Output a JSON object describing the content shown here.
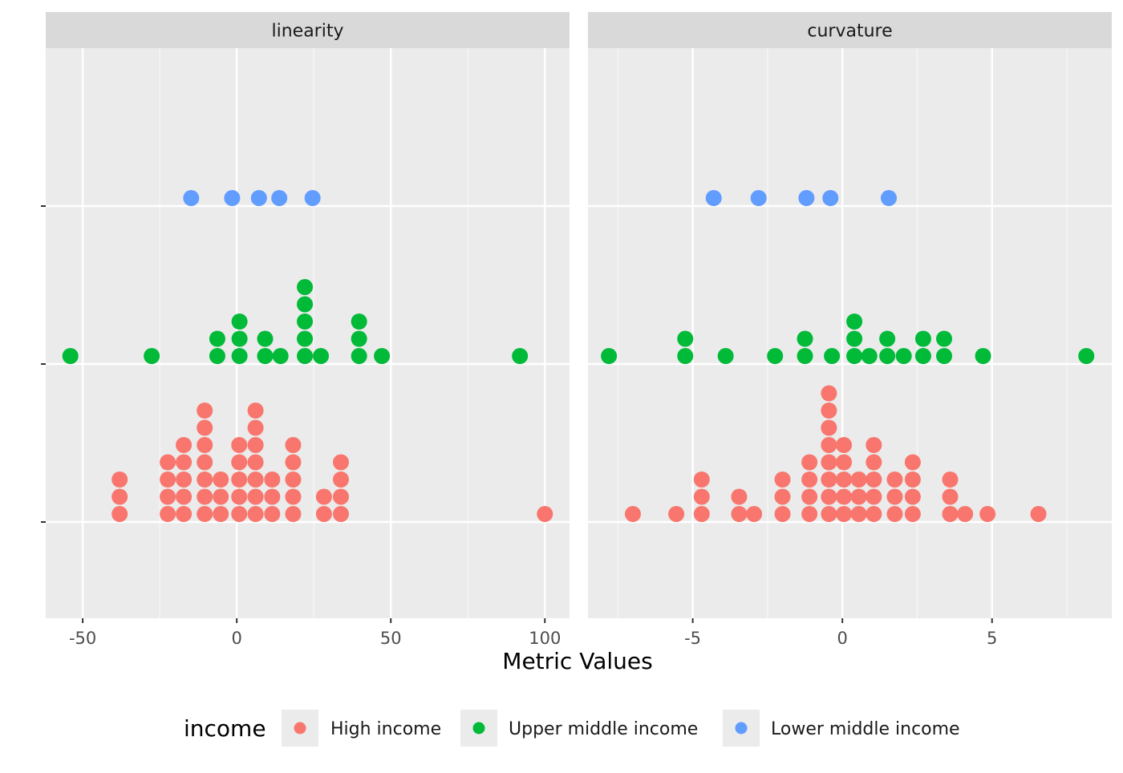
{
  "chart_data": {
    "type": "scatter",
    "subtype": "dotplot",
    "xlabel": "Metric Values",
    "ylabel": "",
    "grid": true,
    "legend_position": "bottom",
    "legend": {
      "title": "income",
      "entries": [
        {
          "label": "High income",
          "color": "#F8766D"
        },
        {
          "label": "Upper middle income",
          "color": "#00BA38"
        },
        {
          "label": "Lower middle income",
          "color": "#619CFF"
        }
      ]
    },
    "panels": [
      {
        "title": "linearity",
        "xlim": [
          -62,
          108
        ],
        "xticks": [
          -50,
          0,
          50,
          100
        ],
        "xtick_labels": [
          "-50",
          "0",
          "50",
          "100"
        ],
        "series": [
          {
            "name": "High income",
            "points": [
              {
                "x": -38,
                "count": 3
              },
              {
                "x": -22.4,
                "count": 4
              },
              {
                "x": -17.2,
                "count": 5
              },
              {
                "x": -10.4,
                "count": 7
              },
              {
                "x": -5.2,
                "count": 3
              },
              {
                "x": 0.8,
                "count": 5
              },
              {
                "x": 6.1,
                "count": 7
              },
              {
                "x": 11.5,
                "count": 3
              },
              {
                "x": 18.3,
                "count": 5
              },
              {
                "x": 28.3,
                "count": 2
              },
              {
                "x": 33.8,
                "count": 4
              },
              {
                "x": 100,
                "count": 1
              }
            ]
          },
          {
            "name": "Upper middle income",
            "points": [
              {
                "x": -54,
                "count": 1
              },
              {
                "x": -27.6,
                "count": 1
              },
              {
                "x": -6.3,
                "count": 2
              },
              {
                "x": 0.9,
                "count": 3
              },
              {
                "x": 9.2,
                "count": 2
              },
              {
                "x": 14.2,
                "count": 1
              },
              {
                "x": 22.1,
                "count": 5
              },
              {
                "x": 27.3,
                "count": 1
              },
              {
                "x": 39.7,
                "count": 3
              },
              {
                "x": 47.1,
                "count": 1
              },
              {
                "x": 91.9,
                "count": 1
              }
            ]
          },
          {
            "name": "Lower middle income",
            "points": [
              {
                "x": -14.8,
                "count": 1
              },
              {
                "x": -1.5,
                "count": 1
              },
              {
                "x": 7.2,
                "count": 1
              },
              {
                "x": 13.8,
                "count": 1
              },
              {
                "x": 24.6,
                "count": 1
              }
            ]
          }
        ]
      },
      {
        "title": "curvature",
        "xlim": [
          -8.5,
          9
        ],
        "xticks": [
          -5,
          0,
          5
        ],
        "xtick_labels": [
          "-5",
          "0",
          "5"
        ],
        "series": [
          {
            "name": "High income",
            "points": [
              {
                "x": -7,
                "count": 1
              },
              {
                "x": -5.55,
                "count": 1
              },
              {
                "x": -4.7,
                "count": 3
              },
              {
                "x": -3.45,
                "count": 2
              },
              {
                "x": -2.95,
                "count": 1
              },
              {
                "x": -2,
                "count": 3
              },
              {
                "x": -1.1,
                "count": 4
              },
              {
                "x": -0.45,
                "count": 8
              },
              {
                "x": 0.05,
                "count": 5
              },
              {
                "x": 0.55,
                "count": 3
              },
              {
                "x": 1.05,
                "count": 5
              },
              {
                "x": 1.75,
                "count": 3
              },
              {
                "x": 2.35,
                "count": 4
              },
              {
                "x": 3.6,
                "count": 3
              },
              {
                "x": 4.1,
                "count": 1
              },
              {
                "x": 4.85,
                "count": 1
              },
              {
                "x": 6.55,
                "count": 1
              }
            ]
          },
          {
            "name": "Upper middle income",
            "points": [
              {
                "x": -7.8,
                "count": 1
              },
              {
                "x": -5.25,
                "count": 2
              },
              {
                "x": -3.9,
                "count": 1
              },
              {
                "x": -2.25,
                "count": 1
              },
              {
                "x": -1.25,
                "count": 2
              },
              {
                "x": -0.35,
                "count": 1
              },
              {
                "x": 0.4,
                "count": 3
              },
              {
                "x": 0.9,
                "count": 1
              },
              {
                "x": 1.5,
                "count": 2
              },
              {
                "x": 2.05,
                "count": 1
              },
              {
                "x": 2.7,
                "count": 2
              },
              {
                "x": 3.4,
                "count": 2
              },
              {
                "x": 4.7,
                "count": 1
              },
              {
                "x": 8.15,
                "count": 1
              }
            ]
          },
          {
            "name": "Lower middle income",
            "points": [
              {
                "x": -4.3,
                "count": 1
              },
              {
                "x": -2.8,
                "count": 1
              },
              {
                "x": -1.2,
                "count": 1
              },
              {
                "x": -0.4,
                "count": 1
              },
              {
                "x": 1.55,
                "count": 1
              }
            ]
          }
        ]
      }
    ]
  }
}
